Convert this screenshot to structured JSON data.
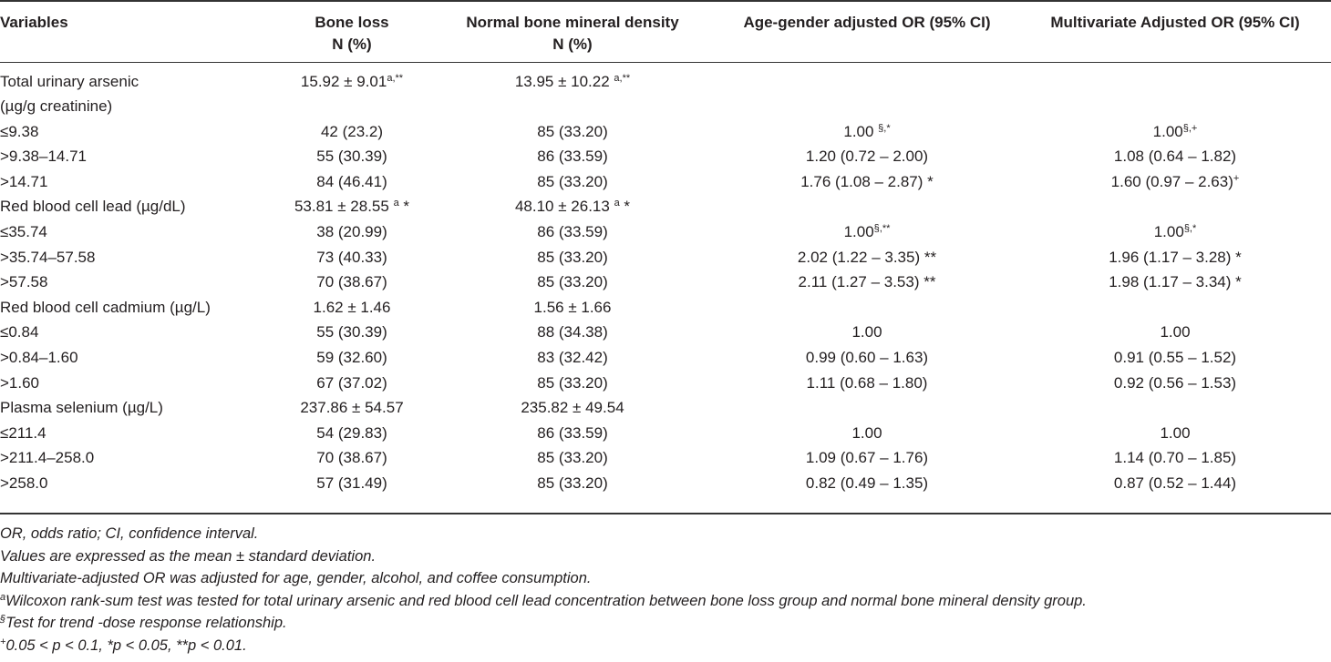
{
  "headers": {
    "variables": "Variables",
    "bone_loss": [
      "Bone loss",
      "N (%)"
    ],
    "normal_bmd": [
      "Normal bone mineral density",
      "N (%)"
    ],
    "age_gender_or": "Age-gender adjusted OR (95% CI)",
    "multivariate_or": "Multivariate Adjusted OR (95% CI)"
  },
  "rows": [
    {
      "label": "Total urinary arsenic",
      "bone": "15.92 ± 9.01",
      "bone_sup": "a,**",
      "normal": "13.95 ± 10.22 ",
      "normal_sup": "a,**",
      "ag": "",
      "ag_sup": "",
      "mv": "",
      "mv_sup": ""
    },
    {
      "label": "(µg/g creatinine)",
      "bone": "",
      "bone_sup": "",
      "normal": "",
      "normal_sup": "",
      "ag": "",
      "ag_sup": "",
      "mv": "",
      "mv_sup": ""
    },
    {
      "label": "≤9.38",
      "bone": "42 (23.2)",
      "bone_sup": "",
      "normal": "85 (33.20)",
      "normal_sup": "",
      "ag": "1.00 ",
      "ag_sup": "§,*",
      "mv": "1.00",
      "mv_sup": "§,+"
    },
    {
      "label": ">9.38–14.71",
      "bone": "55 (30.39)",
      "bone_sup": "",
      "normal": "86 (33.59)",
      "normal_sup": "",
      "ag": "1.20 (0.72 – 2.00)",
      "ag_sup": "",
      "mv": "1.08 (0.64 – 1.82)",
      "mv_sup": ""
    },
    {
      "label": ">14.71",
      "bone": "84 (46.41)",
      "bone_sup": "",
      "normal": "85 (33.20)",
      "normal_sup": "",
      "ag": "1.76 (1.08 – 2.87) *",
      "ag_sup": "",
      "mv": "1.60 (0.97 – 2.63)",
      "mv_sup": "+"
    },
    {
      "label": "Red blood cell lead (µg/dL)",
      "bone": "53.81 ± 28.55 ",
      "bone_sup": "a",
      "bone_after": " *",
      "normal": "48.10 ± 26.13 ",
      "normal_sup": "a",
      "normal_after": " *",
      "ag": "",
      "ag_sup": "",
      "mv": "",
      "mv_sup": ""
    },
    {
      "label": "≤35.74",
      "bone": "38 (20.99)",
      "bone_sup": "",
      "normal": "86 (33.59)",
      "normal_sup": "",
      "ag": "1.00",
      "ag_sup": "§,**",
      "mv": "1.00",
      "mv_sup": "§,*"
    },
    {
      "label": ">35.74–57.58",
      "bone": "73 (40.33)",
      "bone_sup": "",
      "normal": "85 (33.20)",
      "normal_sup": "",
      "ag": "2.02 (1.22 – 3.35) **",
      "ag_sup": "",
      "mv": "1.96 (1.17 – 3.28) *",
      "mv_sup": ""
    },
    {
      "label": ">57.58",
      "bone": "70 (38.67)",
      "bone_sup": "",
      "normal": "85 (33.20)",
      "normal_sup": "",
      "ag": "2.11 (1.27 – 3.53) **",
      "ag_sup": "",
      "mv": "1.98 (1.17 – 3.34) *",
      "mv_sup": ""
    },
    {
      "label": "Red blood cell cadmium (µg/L)",
      "bone": "1.62 ± 1.46",
      "bone_sup": "",
      "normal": "1.56 ± 1.66",
      "normal_sup": "",
      "ag": "",
      "ag_sup": "",
      "mv": "",
      "mv_sup": ""
    },
    {
      "label": "≤0.84",
      "bone": "55 (30.39)",
      "bone_sup": "",
      "normal": "88 (34.38)",
      "normal_sup": "",
      "ag": "1.00",
      "ag_sup": "",
      "mv": "1.00",
      "mv_sup": ""
    },
    {
      "label": ">0.84–1.60",
      "bone": "59 (32.60)",
      "bone_sup": "",
      "normal": "83 (32.42)",
      "normal_sup": "",
      "ag": "0.99 (0.60 – 1.63)",
      "ag_sup": "",
      "mv": "0.91 (0.55 – 1.52)",
      "mv_sup": ""
    },
    {
      "label": ">1.60",
      "bone": "67 (37.02)",
      "bone_sup": "",
      "normal": "85 (33.20)",
      "normal_sup": "",
      "ag": "1.11 (0.68 – 1.80)",
      "ag_sup": "",
      "mv": "0.92 (0.56 – 1.53)",
      "mv_sup": ""
    },
    {
      "label": "Plasma selenium (µg/L)",
      "bone": "237.86 ± 54.57",
      "bone_sup": "",
      "normal": "235.82 ± 49.54",
      "normal_sup": "",
      "ag": "",
      "ag_sup": "",
      "mv": "",
      "mv_sup": ""
    },
    {
      "label": "≤211.4",
      "bone": "54 (29.83)",
      "bone_sup": "",
      "normal": "86 (33.59)",
      "normal_sup": "",
      "ag": "1.00",
      "ag_sup": "",
      "mv": "1.00",
      "mv_sup": ""
    },
    {
      "label": ">211.4–258.0",
      "bone": "70 (38.67)",
      "bone_sup": "",
      "normal": "85 (33.20)",
      "normal_sup": "",
      "ag": "1.09 (0.67 – 1.76)",
      "ag_sup": "",
      "mv": "1.14 (0.70 – 1.85)",
      "mv_sup": ""
    },
    {
      "label": ">258.0",
      "bone": "57 (31.49)",
      "bone_sup": "",
      "normal": "85 (33.20)",
      "normal_sup": "",
      "ag": "0.82 (0.49 – 1.35)",
      "ag_sup": "",
      "mv": "0.87 (0.52 – 1.44)",
      "mv_sup": ""
    }
  ],
  "notes": [
    {
      "sup": "",
      "text": "OR, odds ratio; CI, confidence interval."
    },
    {
      "sup": "",
      "text": "Values are expressed as the mean ± standard deviation."
    },
    {
      "sup": "",
      "text": "Multivariate-adjusted OR was adjusted for age, gender, alcohol, and coffee consumption."
    },
    {
      "sup": "a",
      "text": "Wilcoxon rank-sum test was tested for total urinary arsenic and red blood cell lead concentration between bone loss group and normal bone mineral density group."
    },
    {
      "sup": "§",
      "text": "Test for trend -dose response relationship."
    },
    {
      "sup": "+",
      "text": "0.05 < p < 0.1, *p < 0.05, **p < 0.01."
    }
  ]
}
